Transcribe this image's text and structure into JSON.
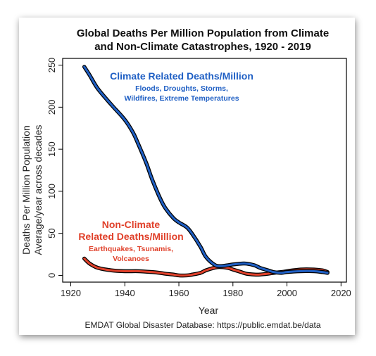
{
  "chart_data": {
    "type": "line",
    "title_line1": "Global Deaths Per Million Population from Climate",
    "title_line2": "and Non-Climate Catastrophes, 1920 - 2019",
    "xlabel": "Year",
    "ylabel_line1": "Deaths Per Million Population",
    "ylabel_line2": "Average/year across decades",
    "source": "EMDAT Global Disaster Database: https://public.emdat.be/data",
    "xlim": [
      1917,
      2022
    ],
    "ylim": [
      -8,
      258
    ],
    "x_ticks": [
      1920,
      1940,
      1960,
      1980,
      2000,
      2020
    ],
    "y_ticks": [
      0,
      50,
      100,
      150,
      200,
      250
    ],
    "grid": false,
    "series": [
      {
        "name": "Climate Related Deaths/Million",
        "color": "#1f5fc4",
        "x": [
          1925,
          1927,
          1930,
          1935,
          1940,
          1943,
          1945,
          1948,
          1950,
          1953,
          1955,
          1958,
          1960,
          1963,
          1965,
          1968,
          1970,
          1973,
          1975,
          1978,
          1980,
          1983,
          1985,
          1988,
          1990,
          1993,
          1995,
          1998,
          2000,
          2005,
          2010,
          2013,
          2015
        ],
        "y": [
          248,
          238,
          222,
          203,
          185,
          170,
          156,
          133,
          115,
          92,
          80,
          68,
          63,
          57,
          49,
          34,
          22,
          13,
          11,
          12,
          13,
          14,
          14,
          12,
          9,
          6,
          4,
          3,
          4,
          5,
          5,
          4,
          3
        ]
      },
      {
        "name": "Non-Climate Related Deaths/Million",
        "color": "#e0402a",
        "x": [
          1925,
          1927,
          1930,
          1935,
          1940,
          1945,
          1950,
          1953,
          1955,
          1958,
          1960,
          1963,
          1965,
          1968,
          1970,
          1973,
          1975,
          1978,
          1980,
          1983,
          1985,
          1988,
          1990,
          1993,
          1995,
          1998,
          2000,
          2005,
          2010,
          2013,
          2015
        ],
        "y": [
          20,
          14,
          9,
          6,
          5,
          5,
          4,
          3,
          2,
          1,
          0,
          0,
          1,
          3,
          6,
          9,
          10,
          9,
          7,
          4,
          2,
          1,
          1,
          2,
          3,
          4,
          5,
          7,
          7,
          6,
          4
        ]
      }
    ],
    "annotations": {
      "climate": {
        "title": "Climate Related Deaths/Million",
        "sub1": "Floods, Droughts, Storms,",
        "sub2": "Wildfires, Extreme Temperatures"
      },
      "nonclimate": {
        "title1": "Non-Climate",
        "title2": "Related Deaths/Million",
        "sub1": "Earthquakes, Tsunamis,",
        "sub2": "Volcanoes"
      }
    }
  }
}
